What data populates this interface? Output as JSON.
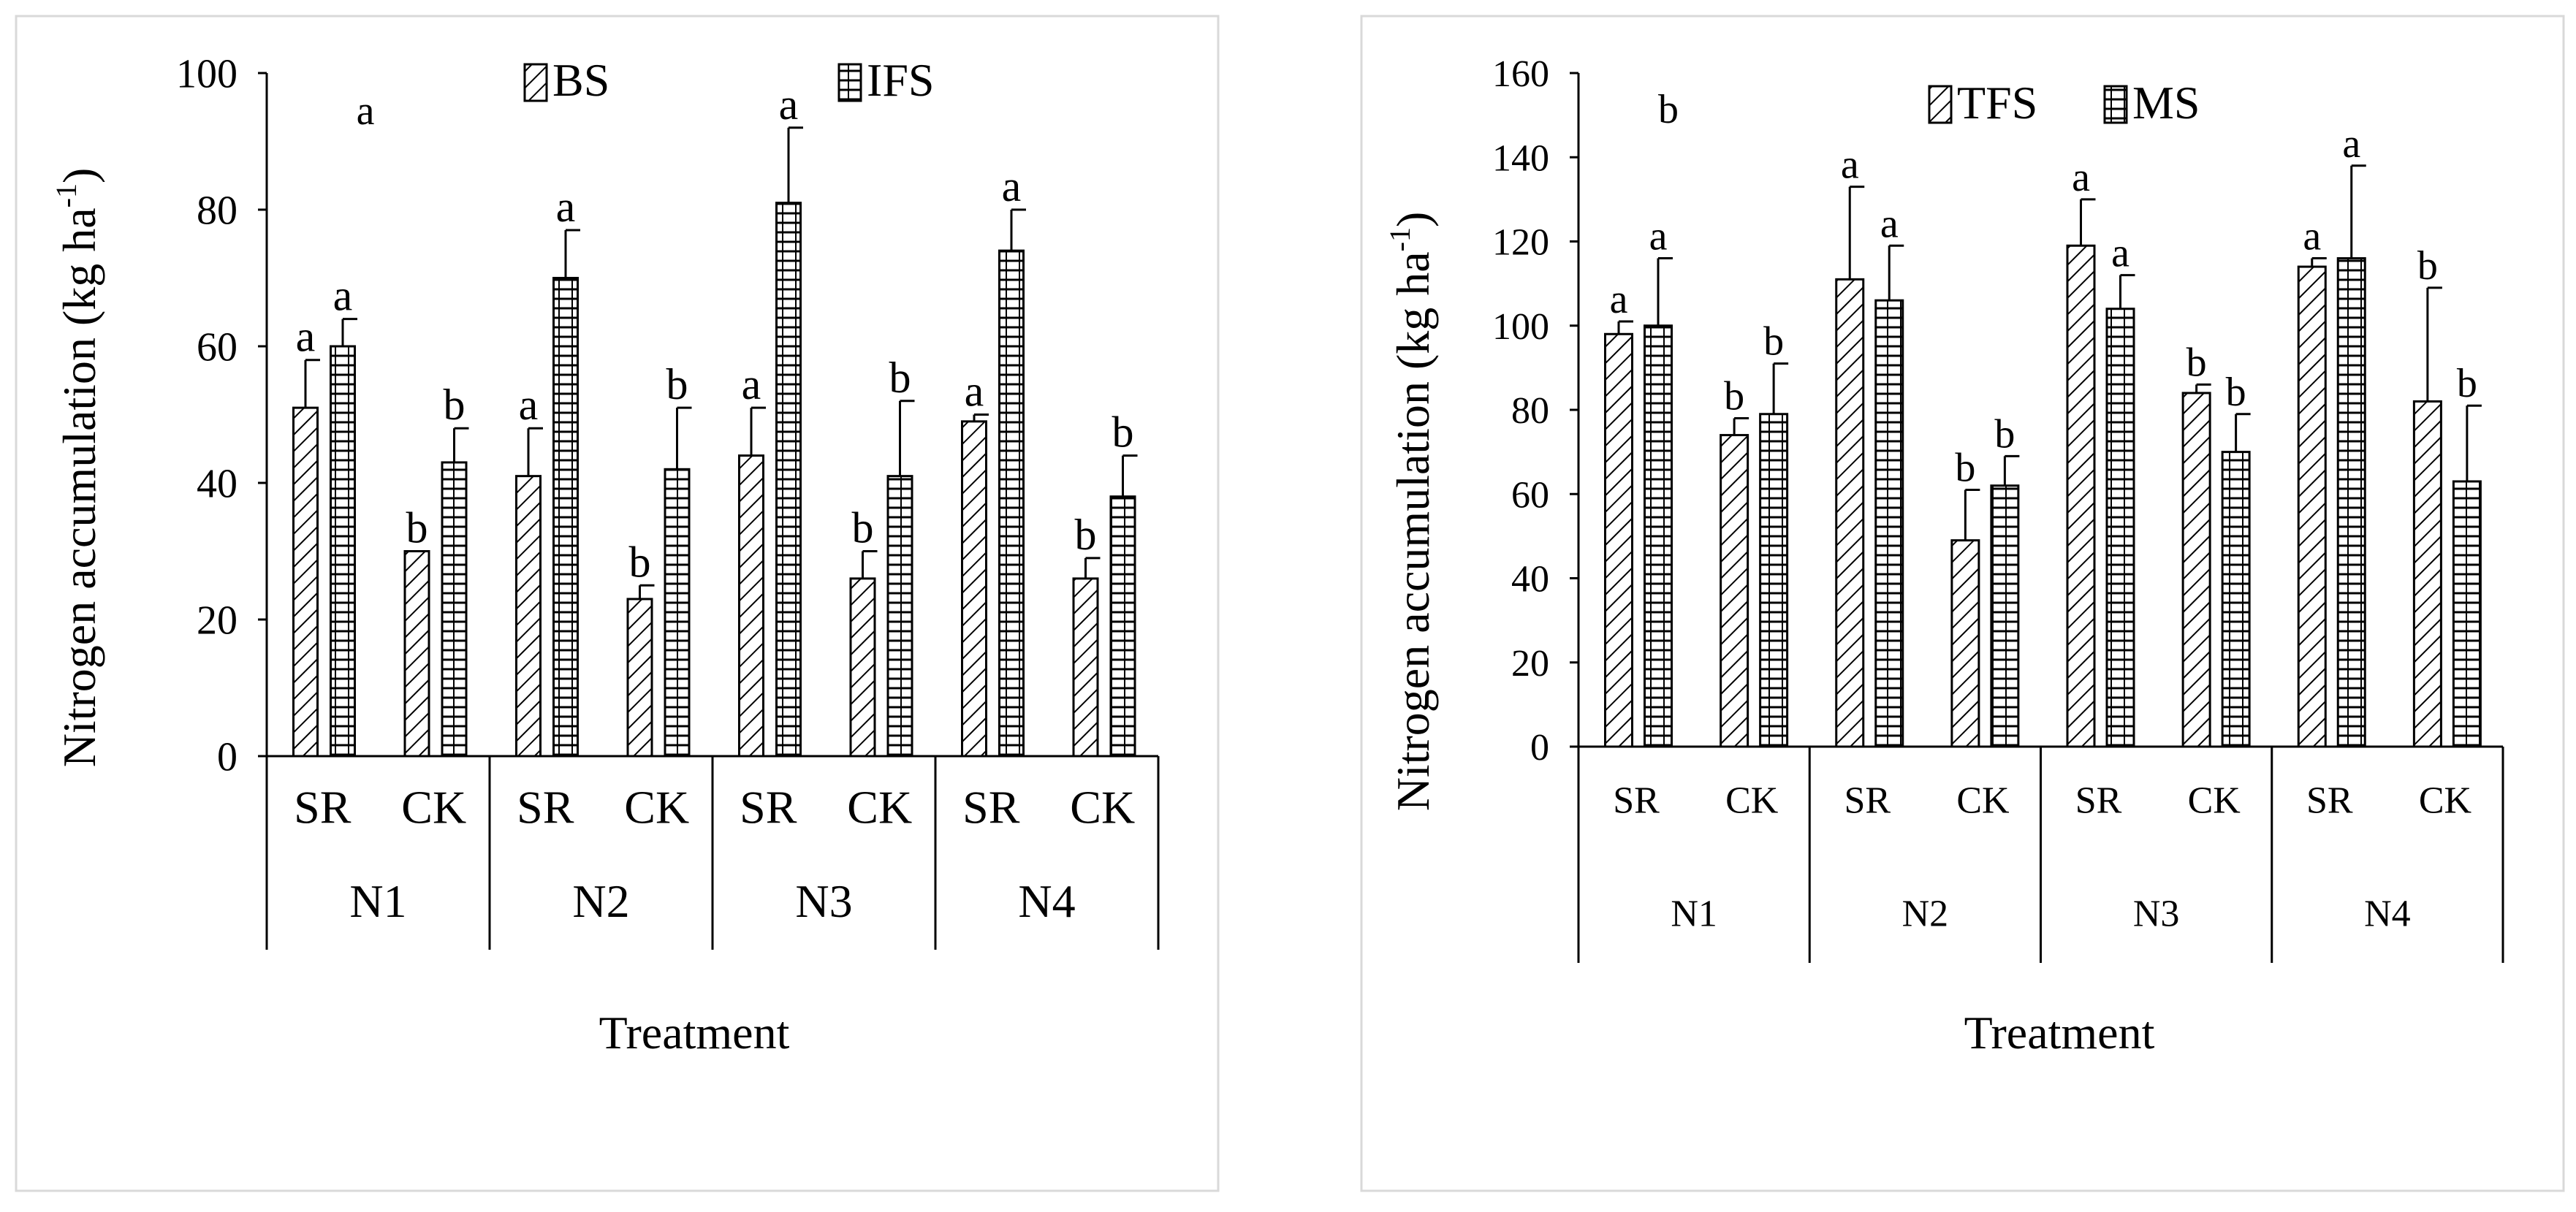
{
  "colors": {
    "axis": "#000000",
    "frame": "#d9d9d9",
    "bar_fill": "#ffffff",
    "hatch": "#000000"
  },
  "chart_data": [
    {
      "type": "bar",
      "title": "",
      "xlabel": "Treatment",
      "ylabel_main": "Nitrogen accumulation (kg ha",
      "ylabel_sup": "-1",
      "ylabel_close": ")",
      "ylim": [
        0,
        100
      ],
      "yticks": [
        0,
        20,
        40,
        60,
        80,
        100
      ],
      "groups": [
        "N1",
        "N2",
        "N3",
        "N4"
      ],
      "categories": [
        "SR",
        "CK",
        "SR",
        "CK",
        "SR",
        "CK",
        "SR",
        "CK"
      ],
      "legend_position": "top",
      "extra_annotation": "a",
      "series": [
        {
          "name": "BS",
          "pattern": "diagonal",
          "values": [
            51,
            30,
            41,
            23,
            44,
            26,
            49,
            26
          ],
          "errors": [
            7,
            0,
            7,
            2,
            7,
            4,
            1,
            3
          ],
          "labels": [
            "a",
            "b",
            "a",
            "b",
            "a",
            "b",
            "a",
            "b"
          ]
        },
        {
          "name": "IFS",
          "pattern": "horizontal",
          "values": [
            60,
            43,
            70,
            42,
            81,
            41,
            74,
            38
          ],
          "errors": [
            4,
            5,
            7,
            9,
            11,
            11,
            6,
            6
          ],
          "labels": [
            "a",
            "b",
            "a",
            "b",
            "a",
            "b",
            "a",
            "b"
          ]
        }
      ]
    },
    {
      "type": "bar",
      "title": "",
      "xlabel": "Treatment",
      "ylabel_main": "Nitrogen accumulation (kg ha",
      "ylabel_sup": "-1",
      "ylabel_close": ")",
      "ylim": [
        0,
        160
      ],
      "yticks": [
        0,
        20,
        40,
        60,
        80,
        100,
        120,
        140,
        160
      ],
      "groups": [
        "N1",
        "N2",
        "N3",
        "N4"
      ],
      "categories": [
        "SR",
        "CK",
        "SR",
        "CK",
        "SR",
        "CK",
        "SR",
        "CK"
      ],
      "legend_position": "top",
      "extra_annotation": "b",
      "series": [
        {
          "name": "TFS",
          "pattern": "diagonal",
          "values": [
            98,
            74,
            111,
            49,
            119,
            84,
            114,
            82
          ],
          "errors": [
            3,
            4,
            22,
            12,
            11,
            2,
            2,
            27
          ],
          "labels": [
            "a",
            "b",
            "a",
            "b",
            "a",
            "b",
            "a",
            "b"
          ]
        },
        {
          "name": "MS",
          "pattern": "horizontal",
          "values": [
            100,
            79,
            106,
            62,
            104,
            70,
            116,
            63
          ],
          "errors": [
            16,
            12,
            13,
            7,
            8,
            9,
            22,
            18
          ],
          "labels": [
            "a",
            "b",
            "a",
            "b",
            "a",
            "b",
            "a",
            "b"
          ]
        }
      ]
    }
  ]
}
